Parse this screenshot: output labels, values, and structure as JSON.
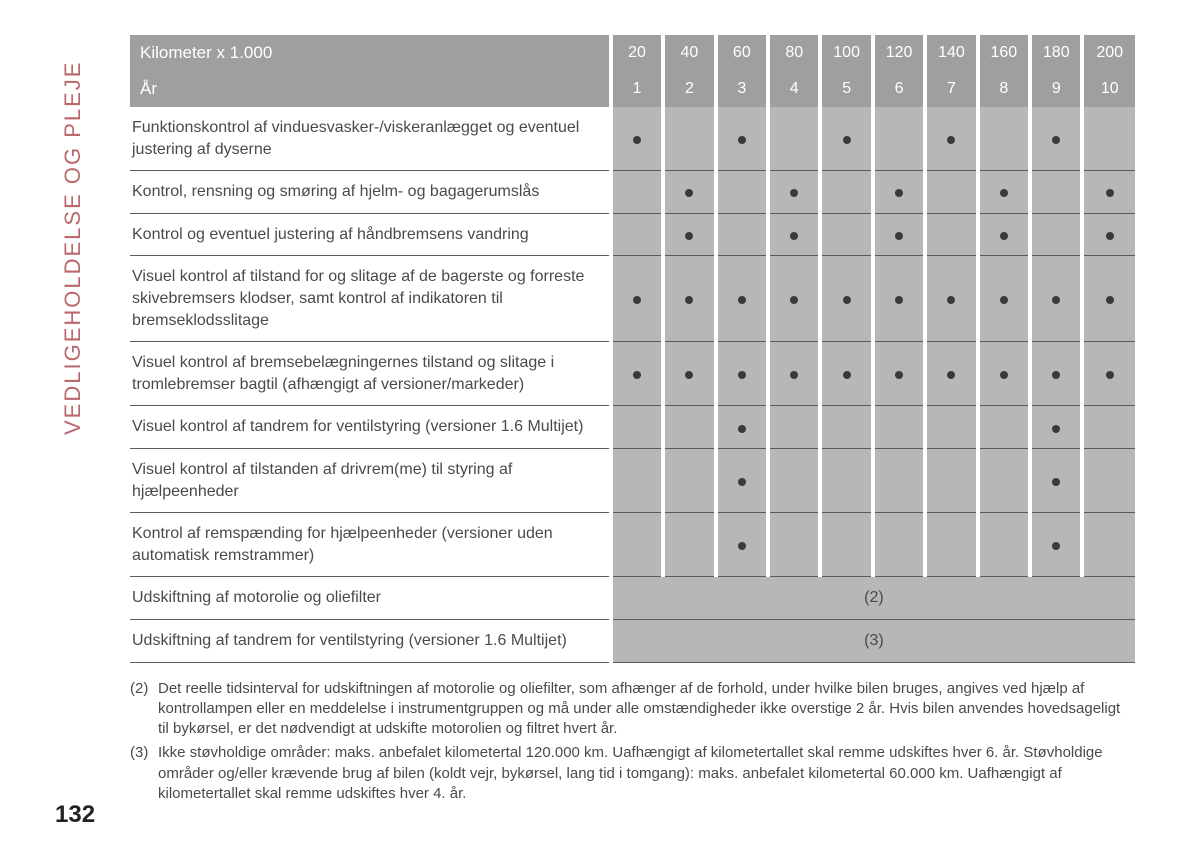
{
  "colors": {
    "header_bg": "#9f9f9f",
    "header_text": "#ffffff",
    "cell_bg": "#b7b7b7",
    "text": "#4a4a4a",
    "side_label": "#b9686c",
    "row_border": "#5c5c5c",
    "page_bg": "#ffffff",
    "dot": "#3a3a3a"
  },
  "typography": {
    "body_fontsize": 16,
    "header_fontsize": 16,
    "side_fontsize": 22,
    "footnote_fontsize": 15,
    "pagenum_fontsize": 24
  },
  "side_label": "VEDLIGEHOLDELSE OG PLEJE",
  "page_number": "132",
  "table": {
    "header_rows": [
      {
        "label": "Kilometer x 1.000",
        "values": [
          "20",
          "40",
          "60",
          "80",
          "100",
          "120",
          "140",
          "160",
          "180",
          "200"
        ]
      },
      {
        "label": "År",
        "values": [
          "1",
          "2",
          "3",
          "4",
          "5",
          "6",
          "7",
          "8",
          "9",
          "10"
        ]
      }
    ],
    "rows": [
      {
        "desc": "Funktionskontrol af vinduesvasker-/viskeranlægget og eventuel justering af dyserne",
        "marks": [
          1,
          0,
          1,
          0,
          1,
          0,
          1,
          0,
          1,
          0
        ]
      },
      {
        "desc": "Kontrol, rensning og smøring af hjelm- og bagagerumslås",
        "marks": [
          0,
          1,
          0,
          1,
          0,
          1,
          0,
          1,
          0,
          1
        ]
      },
      {
        "desc": "Kontrol og eventuel justering af håndbremsens vandring",
        "marks": [
          0,
          1,
          0,
          1,
          0,
          1,
          0,
          1,
          0,
          1
        ]
      },
      {
        "desc": "Visuel kontrol af tilstand for og slitage af de bagerste og forreste skivebremsers klodser, samt kontrol af indikatoren til bremseklodsslitage",
        "marks": [
          1,
          1,
          1,
          1,
          1,
          1,
          1,
          1,
          1,
          1
        ]
      },
      {
        "desc": "Visuel kontrol af bremsebelægningernes tilstand og slitage i tromlebremser bagtil (afhængigt af versioner/markeder)",
        "marks": [
          1,
          1,
          1,
          1,
          1,
          1,
          1,
          1,
          1,
          1
        ]
      },
      {
        "desc": "Visuel kontrol af tandrem for ventilstyring (versioner 1.6 Multijet)",
        "marks": [
          0,
          0,
          1,
          0,
          0,
          0,
          0,
          0,
          1,
          0
        ]
      },
      {
        "desc": "Visuel kontrol af tilstanden af drivrem(me) til styring af hjælpeenheder",
        "marks": [
          0,
          0,
          1,
          0,
          0,
          0,
          0,
          0,
          1,
          0
        ]
      },
      {
        "desc": "Kontrol af remspænding for hjælpeenheder (versioner uden automatisk remstrammer)",
        "marks": [
          0,
          0,
          1,
          0,
          0,
          0,
          0,
          0,
          1,
          0
        ]
      },
      {
        "desc": "Udskiftning af motorolie og oliefilter",
        "span_note": "(2)"
      },
      {
        "desc": "Udskiftning af tandrem for ventilstyring (versioner 1.6 Multijet)",
        "span_note": "(3)"
      }
    ]
  },
  "footnotes": [
    {
      "n": "(2)",
      "text": "Det reelle tidsinterval for udskiftningen af motorolie og oliefilter, som afhænger af de forhold, under hvilke bilen bruges, angives ved hjælp af kontrollampen eller en meddelelse i instrumentgruppen og må under alle omstændigheder ikke overstige 2 år. Hvis bilen anvendes hovedsageligt til bykørsel, er det nødvendigt at udskifte motorolien og filtret hvert år."
    },
    {
      "n": "(3)",
      "text": "Ikke støvholdige områder: maks. anbefalet kilometertal 120.000 km. Uafhængigt af kilometertallet skal remme udskiftes hver 6. år. Støvholdige områder og/eller krævende brug af bilen (koldt vejr, bykørsel, lang tid i tomgang): maks. anbefalet kilometertal 60.000 km. Uafhængigt af kilometertallet skal remme udskiftes hver 4. år."
    }
  ]
}
